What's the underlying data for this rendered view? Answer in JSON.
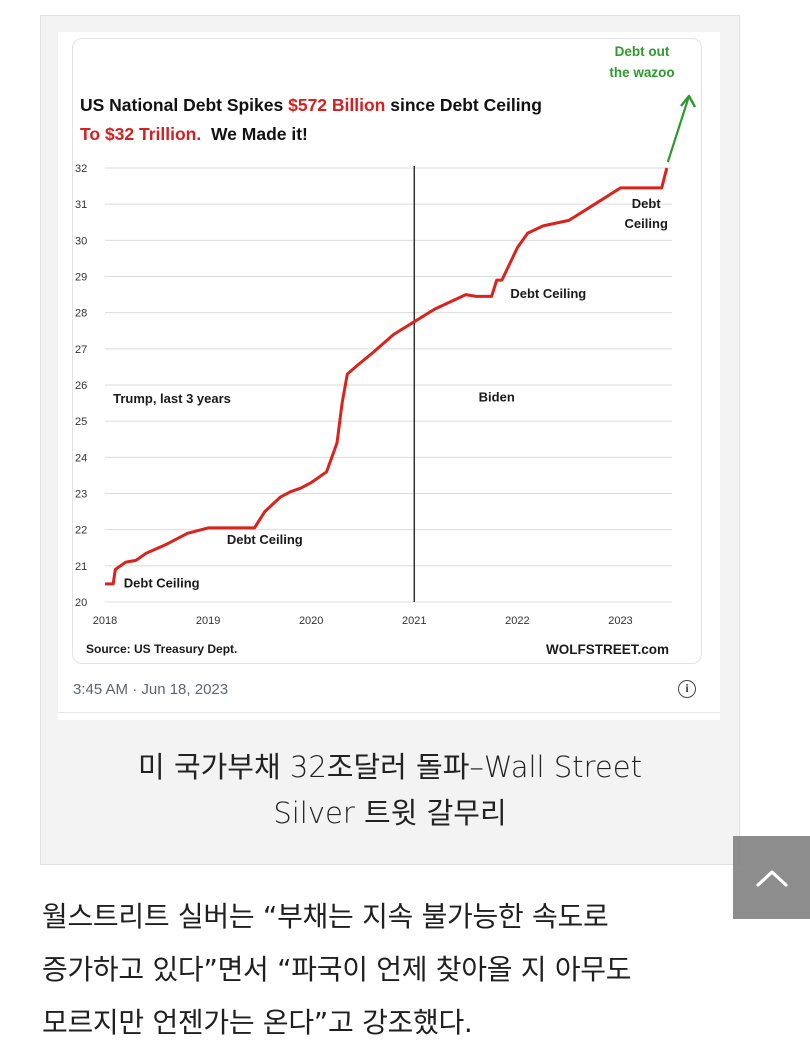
{
  "chart_data": {
    "type": "line",
    "title_parts": [
      {
        "text": "US National Debt Spikes ",
        "color": "#111111"
      },
      {
        "text": "$572 Billion",
        "color": "#d62020"
      },
      {
        "text": " since Debt Ceiling",
        "color": "#111111"
      }
    ],
    "title_line2_parts": [
      {
        "text": "To $32 Trillion.",
        "color": "#d62020"
      },
      {
        "text": "  We Made it!",
        "color": "#111111"
      }
    ],
    "ylim": [
      20,
      32
    ],
    "yticks": [
      "20",
      "21",
      "22",
      "23",
      "24",
      "25",
      "26",
      "27",
      "28",
      "29",
      "30",
      "31",
      "32"
    ],
    "xlim": [
      2018,
      2023.5
    ],
    "xticks": [
      "2018",
      "2019",
      "2020",
      "2021",
      "2022",
      "2023"
    ],
    "grid": true,
    "series": [
      {
        "color": "#d9231c",
        "x": [
          2018.0,
          2018.08,
          2018.1,
          2018.2,
          2018.3,
          2018.4,
          2018.6,
          2018.8,
          2019.0,
          2019.15,
          2019.45,
          2019.55,
          2019.7,
          2019.8,
          2019.9,
          2020.0,
          2020.15,
          2020.25,
          2020.3,
          2020.35,
          2020.45,
          2020.6,
          2020.8,
          2021.0,
          2021.2,
          2021.5,
          2021.6,
          2021.75,
          2021.8,
          2021.85,
          2022.0,
          2022.1,
          2022.25,
          2022.5,
          2022.75,
          2023.0,
          2023.2,
          2023.4,
          2023.45
        ],
        "y": [
          20.5,
          20.5,
          20.9,
          21.1,
          21.15,
          21.35,
          21.6,
          21.9,
          22.05,
          22.05,
          22.05,
          22.5,
          22.9,
          23.05,
          23.15,
          23.3,
          23.6,
          24.4,
          25.5,
          26.3,
          26.55,
          26.9,
          27.4,
          27.75,
          28.1,
          28.5,
          28.45,
          28.45,
          28.9,
          28.9,
          29.8,
          30.2,
          30.4,
          30.55,
          31.0,
          31.45,
          31.45,
          31.45,
          32.0
        ]
      }
    ],
    "vline_x": 2021.0,
    "annotations": [
      {
        "text": "Debt Ceiling",
        "x": 2018.55,
        "y": 20.4
      },
      {
        "text": "Debt Ceiling",
        "x": 2019.55,
        "y": 21.6
      },
      {
        "text": "Trump, last 3 years",
        "x": 2018.65,
        "y": 25.5
      },
      {
        "text": "Biden",
        "x": 2021.8,
        "y": 25.55
      },
      {
        "text": "Debt Ceiling",
        "x": 2022.3,
        "y": 28.4
      }
    ],
    "annotation_multiline": {
      "lines": [
        "Debt",
        "Ceiling"
      ],
      "x": 2023.25,
      "y": 30.9
    },
    "arrow_note": {
      "lines": [
        "Debt out",
        "the wazoo"
      ],
      "color": "#2e9a2e"
    },
    "source": "Source: US Treasury Dept.",
    "brand": "WOLFSTREET.com"
  },
  "tweet": {
    "timestamp": "3:45 AM · Jun 18, 2023",
    "info_icon": "info-icon"
  },
  "caption": {
    "line1": "미 국가부채 32조달러 돌파–Wall Street",
    "line2": "Silver 트윗 갈무리"
  },
  "body": {
    "line1": "월스트리트 실버는 “부채는 지속 불가능한 속도로",
    "line2": "증가하고 있다”면서 “파국이 언제 찾아올 지 아무도",
    "line3": "모르지만 언젠가는 온다”고 강조했다."
  },
  "scroll_top": {
    "icon": "chevron-up-icon"
  }
}
